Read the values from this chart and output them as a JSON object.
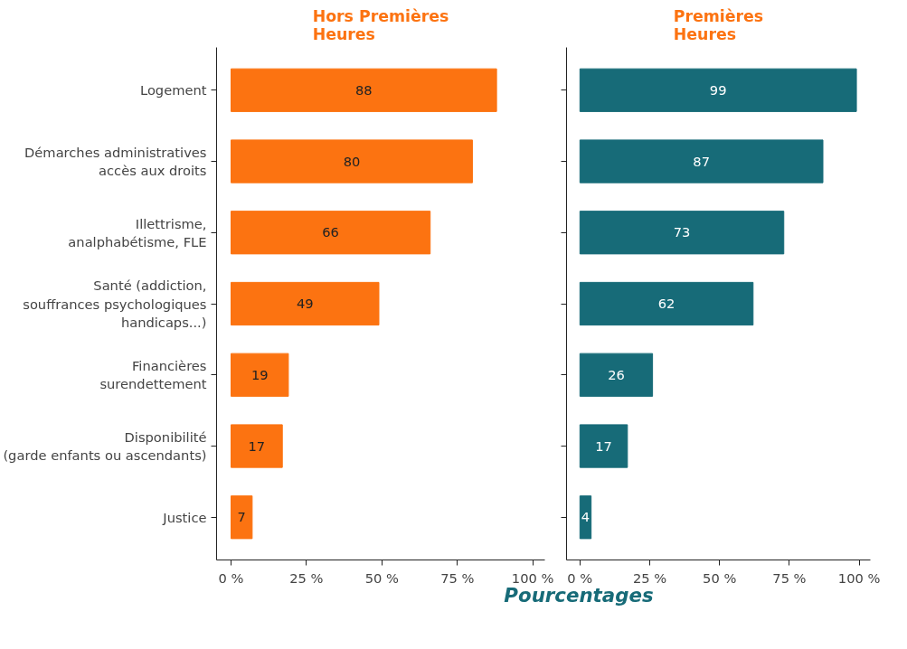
{
  "chart_data": [
    {
      "type": "bar",
      "orientation": "horizontal",
      "title": "Hors Premières\nHeures",
      "xlabel": "Pourcentages",
      "categories": [
        "Logement",
        "Démarches administratives\naccès aux droits",
        "Illettrisme,\nanalphabétisme, FLE",
        "Santé (addiction,\nsouffrances psychologiques\nhandicaps...)",
        "Financières\nsurendettement",
        "Disponibilité\n(garde enfants ou ascendants)",
        "Justice"
      ],
      "series": [
        {
          "color": "#fc7311",
          "values": [
            88,
            80,
            66,
            49,
            19,
            17,
            7
          ]
        }
      ],
      "data_labels": true,
      "grid": false,
      "xlim": [
        -4.8,
        104
      ],
      "xticks": [
        {
          "value": 0,
          "label": "0 %"
        },
        {
          "value": 25,
          "label": "25 %"
        },
        {
          "value": 50,
          "label": "50 %"
        },
        {
          "value": 75,
          "label": "75 %"
        },
        {
          "value": 100,
          "label": "100 %"
        }
      ]
    },
    {
      "type": "bar",
      "orientation": "horizontal",
      "title": "Premières\nHeures",
      "categories": [
        null,
        null,
        null,
        null,
        null,
        null,
        null
      ],
      "series": [
        {
          "color": "#176b78",
          "values": [
            99,
            87,
            73,
            62,
            26,
            17,
            4
          ]
        }
      ],
      "data_labels": true,
      "grid": false,
      "xlim": [
        -4.8,
        104
      ],
      "xticks": [
        {
          "value": 0,
          "label": "0 %"
        },
        {
          "value": 25,
          "label": "25 %"
        },
        {
          "value": 50,
          "label": "50 %"
        },
        {
          "value": 75,
          "label": "75 %"
        },
        {
          "value": 100,
          "label": "100 %"
        }
      ]
    }
  ]
}
